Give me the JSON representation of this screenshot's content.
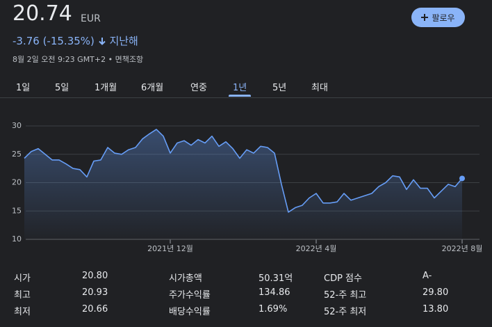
{
  "header": {
    "price": "20.74",
    "currency": "EUR",
    "change": "-3.76 (-15.35%)",
    "period": "지난해",
    "timestamp": "8월 2일 오전 9:23 GMT+2",
    "separator": "•",
    "disclaimer": "면책조항"
  },
  "follow_button": "팔로우",
  "tabs": [
    "1일",
    "5일",
    "1개월",
    "6개월",
    "연중",
    "1년",
    "5년",
    "최대"
  ],
  "selected_tab": "1년",
  "chart_data": {
    "type": "line",
    "color": "#669df6",
    "categories": [
      null,
      null,
      null,
      null,
      null,
      null,
      null,
      null,
      null,
      null,
      null,
      null,
      null,
      null,
      null,
      null,
      null,
      null,
      null,
      null,
      null,
      "2021년 12월",
      null,
      null,
      null,
      null,
      null,
      null,
      null,
      null,
      null,
      null,
      null,
      null,
      null,
      null,
      null,
      null,
      null,
      null,
      null,
      null,
      "2022년 4월",
      null,
      null,
      null,
      null,
      null,
      null,
      null,
      null,
      null,
      null,
      null,
      null,
      null,
      null,
      null,
      null,
      null,
      null,
      null,
      null,
      "2022년 8월"
    ],
    "values": [
      24.3,
      25.5,
      26,
      25,
      24,
      24,
      23.3,
      22.5,
      22.3,
      21,
      23.8,
      24,
      26.2,
      25.2,
      25,
      25.8,
      26.2,
      27.7,
      28.6,
      29.4,
      28.2,
      25.2,
      27,
      27.4,
      26.6,
      27.6,
      27,
      28.2,
      26.4,
      27.2,
      26,
      24.3,
      25.8,
      25.2,
      26.4,
      26.2,
      25.2,
      19.7,
      14.8,
      15.6,
      16,
      17.3,
      18.1,
      16.4,
      16.4,
      16.6,
      18.1,
      16.9,
      17.3,
      17.7,
      18.1,
      19.3,
      20,
      21.2,
      21,
      18.8,
      20.5,
      19,
      19,
      17.3,
      18.5,
      19.7,
      19.3,
      20.74
    ],
    "ylim": [
      10,
      30
    ],
    "yticks": [
      10,
      15,
      20,
      25,
      30
    ],
    "grid": true
  },
  "stats": [
    {
      "label": "시가",
      "value": "20.80"
    },
    {
      "label": "시가총액",
      "value": "50.31억"
    },
    {
      "label": "CDP 점수",
      "value": "A-"
    },
    {
      "label": "최고",
      "value": "20.93"
    },
    {
      "label": "주가수익률",
      "value": "134.86"
    },
    {
      "label": "52-주 최고",
      "value": "29.80"
    },
    {
      "label": "최저",
      "value": "20.66"
    },
    {
      "label": "배당수익률",
      "value": "1.69%"
    },
    {
      "label": "52-주 최저",
      "value": "13.80"
    }
  ]
}
